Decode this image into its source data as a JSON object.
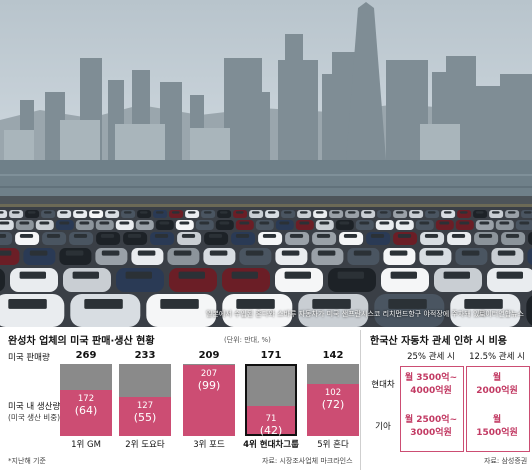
{
  "photo": {
    "caption": "일본에서 수입된 혼다와 스바루 자동차가 미국 샌프란시스코 리치먼드항구 야적장에 주차돼 있다.",
    "credit": "로이터연합뉴스"
  },
  "left_chart": {
    "title": "완성차 업체의 미국 판매·생산 현황",
    "unit": "(단위: 만대, %)",
    "row_label_sales": "미국 판매량",
    "row_label_production": "미국 내 생산량",
    "row_label_production_sub": "(미국 생산 비중)",
    "source_note": "*지난해 기준",
    "source": "자료: 시장조사업체 마크라인스",
    "highlight_color": "#cc4d73",
    "base_color": "#8a8a8a"
  },
  "chart_data": {
    "type": "bar",
    "categories": [
      "1위 GM",
      "2위 도요타",
      "3위 포드",
      "4위 현대차그룹",
      "5위 혼다"
    ],
    "series": [
      {
        "name": "미국 판매량",
        "values": [
          269,
          233,
          209,
          171,
          142
        ]
      },
      {
        "name": "미국 내 생산량",
        "values": [
          172,
          127,
          207,
          71,
          102
        ]
      }
    ],
    "share_labels": [
      "(64)",
      "(55)",
      "(99)",
      "(42)",
      "(72)"
    ],
    "sales_labels": [
      "269",
      "233",
      "209",
      "171",
      "142"
    ],
    "production_labels": [
      "172",
      "127",
      "207",
      "71",
      "102"
    ],
    "highlight_index": 3
  },
  "right_table": {
    "title": "한국산 자동차 관세 인하 시 비용",
    "col_headers": [
      "25% 관세 시",
      "12.5% 관세 시"
    ],
    "row_headers": [
      "현대차",
      "기아"
    ],
    "cells": [
      [
        "월 3500억~\n4000억원",
        "월\n2000억원"
      ],
      [
        "월 2500억~\n3000억원",
        "월\n1500억원"
      ]
    ],
    "source": "자료: 삼성증권"
  }
}
